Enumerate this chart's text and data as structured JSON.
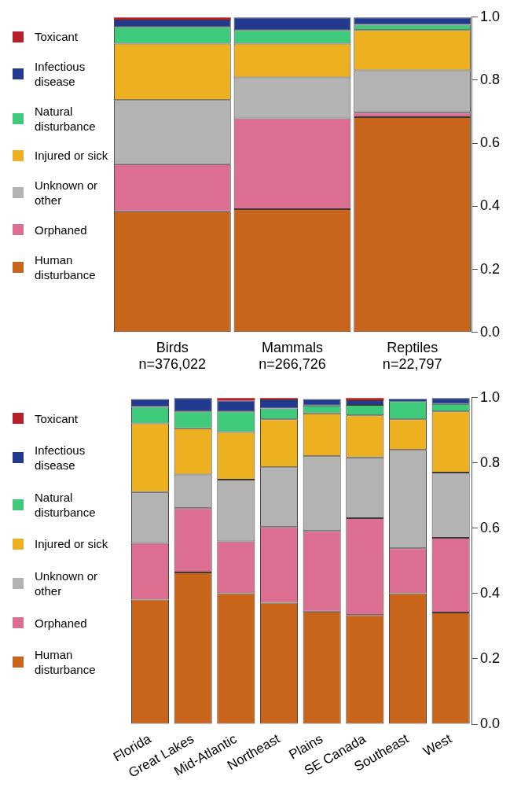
{
  "chart_data": [
    {
      "type": "bar",
      "stacked": true,
      "legend": "left",
      "grid": false,
      "categories": [
        "Birds\nn=376,022",
        "Mammals\nn=266,726",
        "Reptiles\nn=22,797"
      ],
      "ylim": [
        0,
        1
      ],
      "yticks": [
        {
          "value": 0,
          "label": "0.0"
        },
        {
          "value": 0.2,
          "label": "0.2"
        },
        {
          "value": 0.4,
          "label": "0.4"
        },
        {
          "value": 0.6,
          "label": "0.6"
        },
        {
          "value": 0.8,
          "label": "0.8"
        },
        {
          "value": 1,
          "label": "1.0"
        }
      ],
      "series": [
        {
          "name": "Human disturbance",
          "color": "#c8651b",
          "values": [
            0.384,
            0.391,
            0.683
          ]
        },
        {
          "name": "Orphaned",
          "color": "#db6e91",
          "values": [
            0.15,
            0.288,
            0.014
          ]
        },
        {
          "name": "Unknown or other",
          "color": "#b3b3b3",
          "values": [
            0.203,
            0.13,
            0.134
          ]
        },
        {
          "name": "Injured or sick",
          "color": "#edb020",
          "values": [
            0.179,
            0.107,
            0.128
          ]
        },
        {
          "name": "Natural disturbance",
          "color": "#3fc97a",
          "values": [
            0.053,
            0.043,
            0.017
          ]
        },
        {
          "name": "Infectious disease",
          "color": "#21398e",
          "values": [
            0.023,
            0.04,
            0.023
          ]
        },
        {
          "name": "Toxicant",
          "color": "#b5202a",
          "values": [
            0.007,
            0,
            0
          ]
        }
      ]
    },
    {
      "type": "bar",
      "stacked": true,
      "legend": "left",
      "grid": false,
      "categories": [
        "Florida",
        "Great Lakes",
        "Mid-Atlantic",
        "Northeast",
        "Plains",
        "SE Canada",
        "Southeast",
        "West"
      ],
      "ylim": [
        0,
        1
      ],
      "yticks": [
        {
          "value": 0,
          "label": "0.0"
        },
        {
          "value": 0.2,
          "label": "0.2"
        },
        {
          "value": 0.4,
          "label": "0.4"
        },
        {
          "value": 0.6,
          "label": "0.6"
        },
        {
          "value": 0.8,
          "label": "0.8"
        },
        {
          "value": 1,
          "label": "1.0"
        }
      ],
      "series": [
        {
          "name": "Human disturbance",
          "color": "#c8651b",
          "values": [
            0.382,
            0.465,
            0.401,
            0.372,
            0.345,
            0.334,
            0.401,
            0.342
          ]
        },
        {
          "name": "Orphaned",
          "color": "#db6e91",
          "values": [
            0.173,
            0.197,
            0.159,
            0.232,
            0.247,
            0.297,
            0.138,
            0.229
          ]
        },
        {
          "name": "Unknown or other",
          "color": "#b3b3b3",
          "values": [
            0.156,
            0.103,
            0.189,
            0.183,
            0.229,
            0.186,
            0.301,
            0.2
          ]
        },
        {
          "name": "Injured or sick",
          "color": "#edb020",
          "values": [
            0.21,
            0.141,
            0.146,
            0.147,
            0.131,
            0.129,
            0.094,
            0.187
          ]
        },
        {
          "name": "Natural disturbance",
          "color": "#3fc97a",
          "values": [
            0.051,
            0.052,
            0.063,
            0.033,
            0.024,
            0.032,
            0.055,
            0.023
          ]
        },
        {
          "name": "Infectious disease",
          "color": "#21398e",
          "values": [
            0.024,
            0.041,
            0.033,
            0.028,
            0.02,
            0.014,
            0.007,
            0.018
          ]
        },
        {
          "name": "Toxicant",
          "color": "#b5202a",
          "values": [
            null,
            0,
            0.008,
            0.004,
            null,
            0.007,
            null,
            0
          ]
        }
      ]
    }
  ]
}
